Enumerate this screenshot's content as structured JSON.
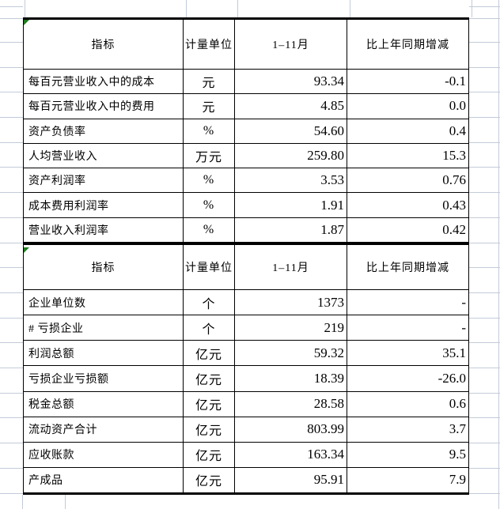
{
  "colors": {
    "table_border": "#000000",
    "gridline": "#c3cbd8",
    "flag_green": "#1e7b1e",
    "background": "#ffffff"
  },
  "tables": [
    {
      "header": {
        "indicator": "指标",
        "unit": "计量单位",
        "period": "1–11月",
        "change": "比上年同期增减"
      },
      "rows": [
        {
          "label": "每百元营业收入中的成本",
          "unit": "元",
          "value": "93.34",
          "change": "-0.1"
        },
        {
          "label": "每百元营业收入中的费用",
          "unit": "元",
          "value": "4.85",
          "change": "0.0"
        },
        {
          "label": "资产负债率",
          "unit": "%",
          "value": "54.60",
          "change": "0.4"
        },
        {
          "label": "人均营业收入",
          "unit": "万元",
          "value": "259.80",
          "change": "15.3"
        },
        {
          "label": "资产利润率",
          "unit": "%",
          "value": "3.53",
          "change": "0.76"
        },
        {
          "label": "成本费用利润率",
          "unit": "%",
          "value": "1.91",
          "change": "0.43"
        },
        {
          "label": "营业收入利润率",
          "unit": "%",
          "value": "1.87",
          "change": "0.42"
        }
      ]
    },
    {
      "header": {
        "indicator": "指标",
        "unit": "计量单位",
        "period": "1–11月",
        "change": "比上年同期增减"
      },
      "rows": [
        {
          "label": "企业单位数",
          "unit": "个",
          "value": "1373",
          "change": "-"
        },
        {
          "label": "# 亏损企业",
          "unit": "个",
          "value": "219",
          "change": "-"
        },
        {
          "label": "利润总额",
          "unit": "亿元",
          "value": "59.32",
          "change": "35.1"
        },
        {
          "label": "亏损企业亏损额",
          "unit": "亿元",
          "value": "18.39",
          "change": "-26.0"
        },
        {
          "label": "税金总额",
          "unit": "亿元",
          "value": "28.58",
          "change": "0.6"
        },
        {
          "label": "流动资产合计",
          "unit": "亿元",
          "value": "803.99",
          "change": "3.7"
        },
        {
          "label": "应收账款",
          "unit": "亿元",
          "value": "163.34",
          "change": "9.5"
        },
        {
          "label": "产成品",
          "unit": "亿元",
          "value": "95.91",
          "change": "7.9"
        }
      ]
    }
  ]
}
